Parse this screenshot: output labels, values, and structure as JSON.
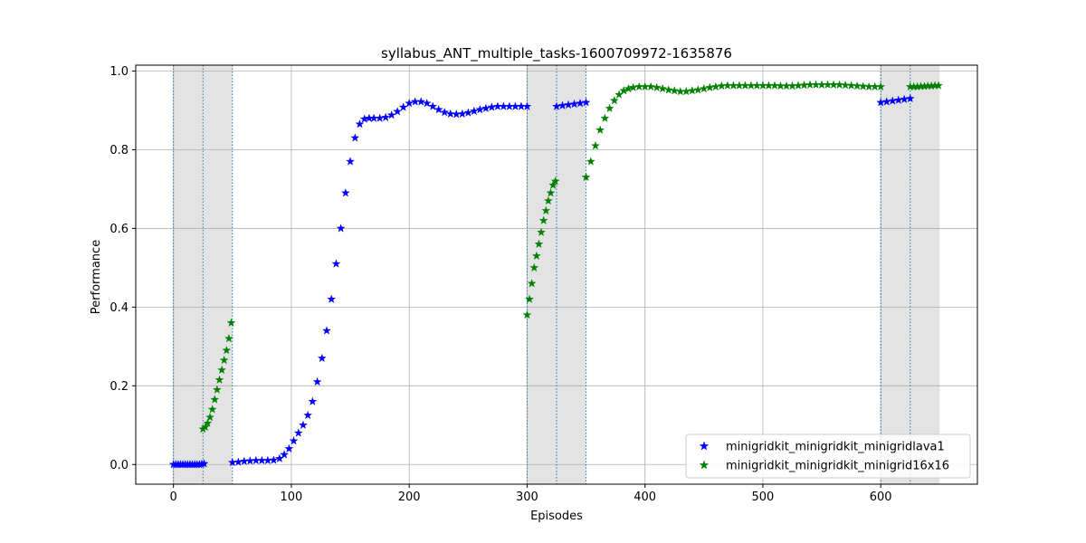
{
  "chart_data": {
    "type": "scatter",
    "title": "syllabus_ANT_multiple_tasks-1600709972-1635876",
    "xlabel": "Episodes",
    "ylabel": "Performance",
    "xlim": [
      -32,
      682
    ],
    "ylim": [
      -0.05,
      1.015
    ],
    "xticks": [
      0,
      100,
      200,
      300,
      400,
      500,
      600
    ],
    "yticks": [
      0.0,
      0.2,
      0.4,
      0.6,
      0.8,
      1.0
    ],
    "grid": true,
    "legend_position": "lower right",
    "marker": "star",
    "shaded_regions": [
      [
        0,
        50
      ],
      [
        300,
        350
      ],
      [
        600,
        650
      ]
    ],
    "boundary_lines": [
      0,
      25,
      50,
      300,
      325,
      350,
      600,
      625
    ],
    "series": [
      {
        "name": "minigridkit_minigridkit_minigridlava1",
        "color": "#0000ff",
        "segments": [
          {
            "x": [
              0,
              2,
              4,
              6,
              8,
              10,
              12,
              14,
              16,
              18,
              20,
              22,
              24,
              26
            ],
            "y": [
              0.0,
              0.0,
              0.0,
              0.0,
              0.0,
              0.0,
              0.0,
              0.0,
              0.0,
              0.0,
              0.0,
              0.0,
              0.001,
              0.002
            ]
          },
          {
            "x": [
              50,
              55,
              60,
              65,
              70,
              75,
              80,
              85,
              90,
              94,
              98,
              102,
              106,
              110,
              114,
              118,
              122,
              126,
              130,
              134,
              138,
              142,
              146,
              150,
              154,
              158,
              162,
              166,
              170,
              175,
              180,
              185,
              190,
              195,
              200,
              205,
              210,
              215,
              220,
              225,
              230,
              235,
              240,
              245,
              250,
              255,
              260,
              265,
              270,
              275,
              280,
              285,
              290,
              295,
              300
            ],
            "y": [
              0.005,
              0.006,
              0.008,
              0.009,
              0.01,
              0.01,
              0.01,
              0.011,
              0.015,
              0.025,
              0.04,
              0.06,
              0.08,
              0.1,
              0.125,
              0.16,
              0.21,
              0.27,
              0.34,
              0.42,
              0.51,
              0.6,
              0.69,
              0.77,
              0.83,
              0.865,
              0.878,
              0.88,
              0.88,
              0.88,
              0.882,
              0.888,
              0.897,
              0.908,
              0.918,
              0.922,
              0.922,
              0.918,
              0.91,
              0.902,
              0.895,
              0.891,
              0.89,
              0.891,
              0.894,
              0.898,
              0.902,
              0.905,
              0.908,
              0.91,
              0.91,
              0.91,
              0.91,
              0.91,
              0.91
            ]
          },
          {
            "x": [
              325,
              330,
              335,
              340,
              345,
              350
            ],
            "y": [
              0.91,
              0.912,
              0.914,
              0.916,
              0.918,
              0.92
            ]
          },
          {
            "x": [
              600,
              605,
              610,
              615,
              620,
              625
            ],
            "y": [
              0.92,
              0.922,
              0.924,
              0.926,
              0.928,
              0.93
            ]
          }
        ]
      },
      {
        "name": "minigridkit_minigridkit_minigrid16x16",
        "color": "#008000",
        "segments": [
          {
            "x": [
              25,
              27,
              29,
              31,
              33,
              35,
              37,
              39,
              41,
              43,
              45,
              47,
              49
            ],
            "y": [
              0.09,
              0.095,
              0.105,
              0.12,
              0.14,
              0.165,
              0.19,
              0.215,
              0.24,
              0.265,
              0.29,
              0.32,
              0.36
            ]
          },
          {
            "x": [
              300,
              302,
              304,
              306,
              308,
              310,
              312,
              314,
              316,
              318,
              320,
              322,
              324
            ],
            "y": [
              0.38,
              0.42,
              0.46,
              0.5,
              0.53,
              0.56,
              0.59,
              0.62,
              0.645,
              0.67,
              0.69,
              0.71,
              0.72
            ]
          },
          {
            "x": [
              350,
              354,
              358,
              362,
              366,
              370,
              374,
              378,
              382,
              386,
              390,
              395,
              400,
              405,
              410,
              415,
              420,
              425,
              430,
              435,
              440,
              445,
              450,
              455,
              460,
              465,
              470,
              475,
              480,
              485,
              490,
              495,
              500,
              505,
              510,
              515,
              520,
              525,
              530,
              535,
              540,
              545,
              550,
              555,
              560,
              565,
              570,
              575,
              580,
              585,
              590,
              595,
              600
            ],
            "y": [
              0.73,
              0.77,
              0.81,
              0.85,
              0.88,
              0.905,
              0.925,
              0.94,
              0.95,
              0.955,
              0.958,
              0.96,
              0.96,
              0.96,
              0.958,
              0.955,
              0.952,
              0.95,
              0.948,
              0.948,
              0.95,
              0.952,
              0.955,
              0.958,
              0.96,
              0.962,
              0.963,
              0.963,
              0.963,
              0.963,
              0.963,
              0.963,
              0.963,
              0.963,
              0.963,
              0.962,
              0.962,
              0.962,
              0.963,
              0.964,
              0.965,
              0.965,
              0.965,
              0.965,
              0.965,
              0.965,
              0.964,
              0.963,
              0.962,
              0.961,
              0.96,
              0.96,
              0.96
            ]
          },
          {
            "x": [
              625,
              628,
              631,
              634,
              637,
              640,
              643,
              646,
              649
            ],
            "y": [
              0.96,
              0.96,
              0.96,
              0.961,
              0.961,
              0.962,
              0.962,
              0.963,
              0.963
            ]
          }
        ]
      }
    ]
  }
}
